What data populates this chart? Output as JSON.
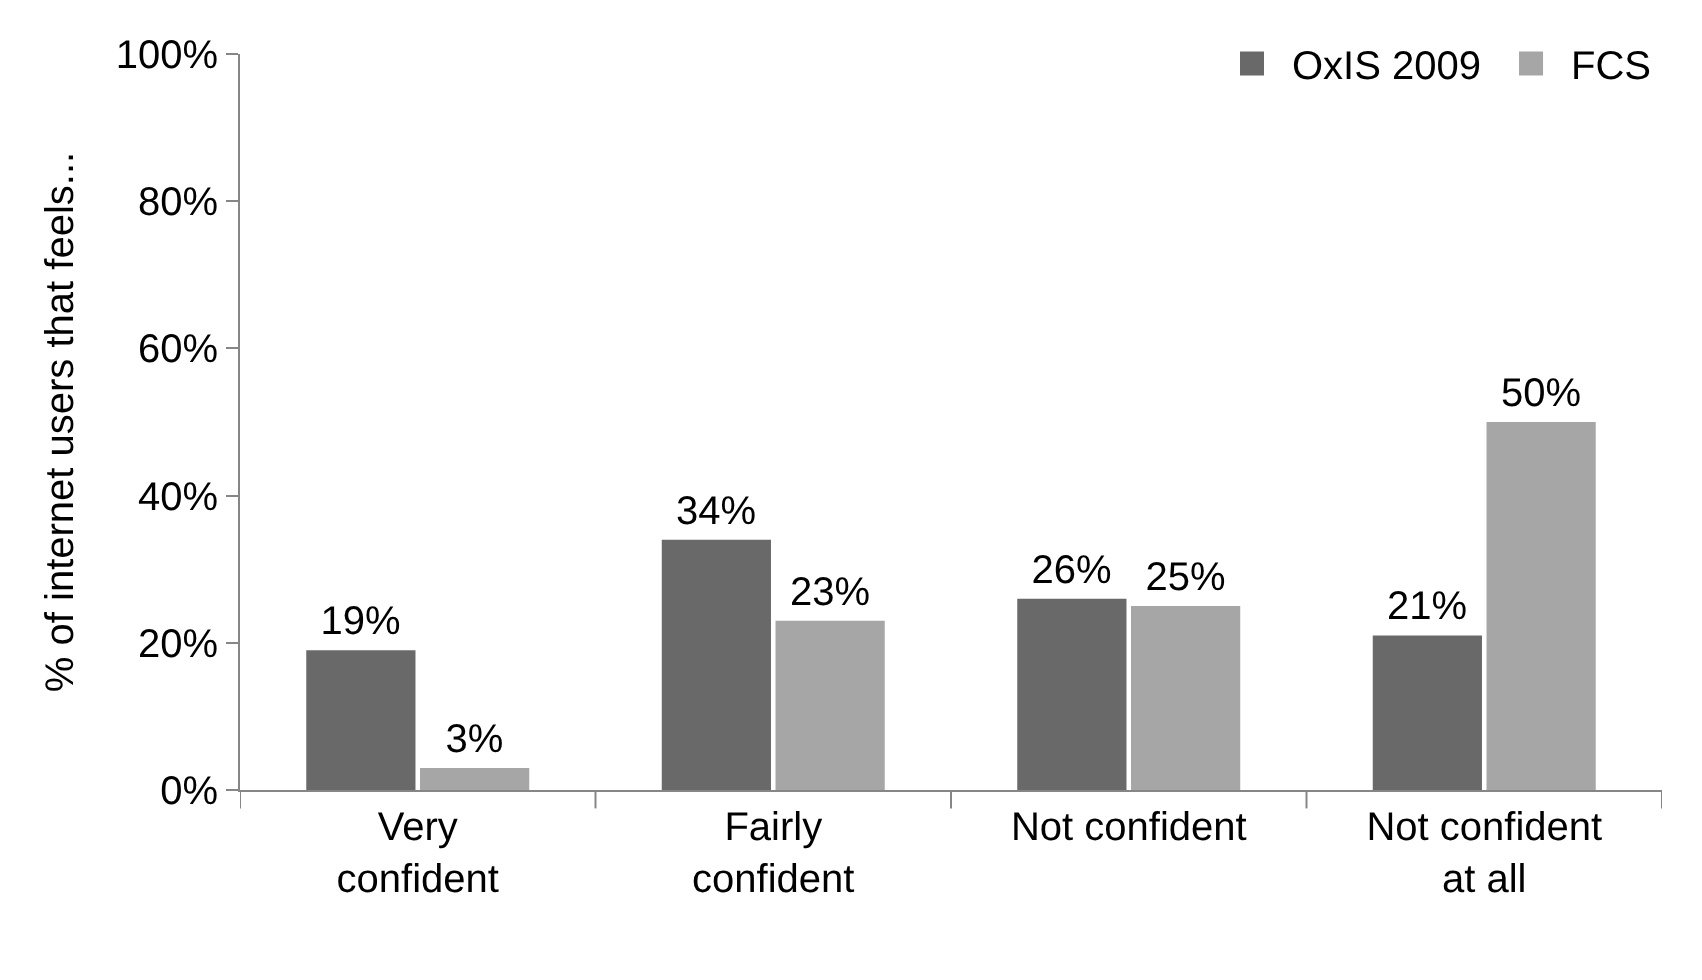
{
  "chart_data": {
    "type": "bar",
    "ylabel": "% of internet users that feels...",
    "categories": [
      "Very\nconfident",
      "Fairly\nconfident",
      "Not confident",
      "Not confident\nat all"
    ],
    "series": [
      {
        "name": "OxIS 2009",
        "color": "#696969",
        "values": [
          19,
          34,
          26,
          21
        ],
        "value_labels": [
          "19%",
          "34%",
          "26%",
          "21%"
        ]
      },
      {
        "name": "FCS",
        "color": "#a6a6a6",
        "values": [
          3,
          23,
          25,
          50
        ],
        "value_labels": [
          "3%",
          "23%",
          "25%",
          "50%"
        ]
      }
    ],
    "ylim": [
      0,
      100
    ],
    "yticks": [
      {
        "value": 0,
        "label": "0%"
      },
      {
        "value": 20,
        "label": "20%"
      },
      {
        "value": 40,
        "label": "40%"
      },
      {
        "value": 60,
        "label": "60%"
      },
      {
        "value": 80,
        "label": "80%"
      },
      {
        "value": 100,
        "label": "100%"
      }
    ],
    "legend": "top right"
  }
}
